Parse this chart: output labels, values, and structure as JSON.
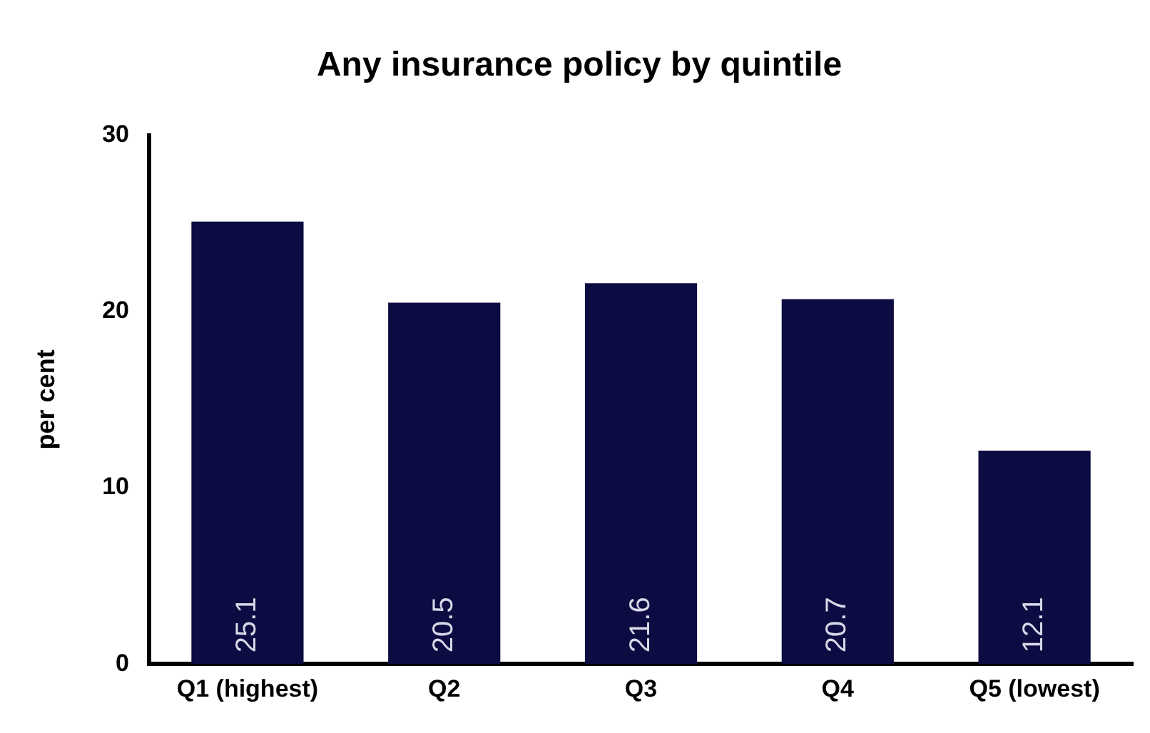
{
  "chart_data": {
    "type": "bar",
    "title": "Any insurance policy by quintile",
    "ylabel": "per cent",
    "categories": [
      "Q1 (highest)",
      "Q2",
      "Q3",
      "Q4",
      "Q5 (lowest)"
    ],
    "values": [
      25.1,
      20.5,
      21.6,
      20.7,
      12.1
    ],
    "color": "#0c0c42",
    "ylim": [
      0,
      30
    ],
    "yticks": [
      0,
      10,
      20,
      30
    ],
    "grid": false,
    "legend": false,
    "data_labels": true
  }
}
